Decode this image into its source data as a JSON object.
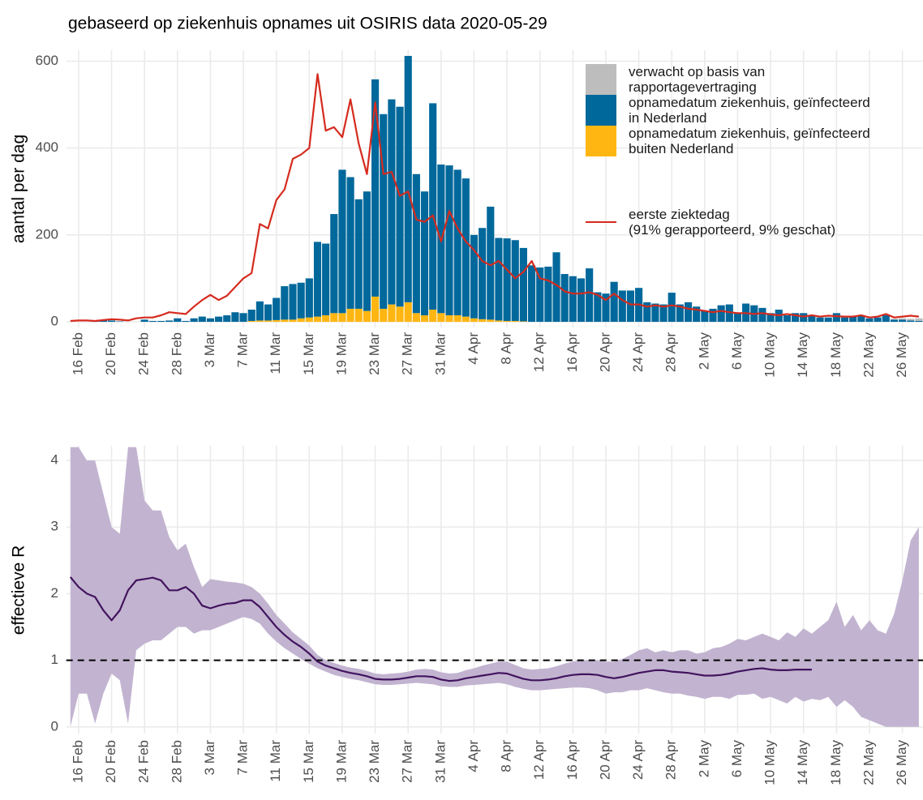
{
  "chart_data": [
    {
      "type": "bar",
      "title": "gebaseerd op ziekenhuis opnames uit OSIRIS data 2020-05-29",
      "y_label": "aantal per dag",
      "categories": [
        null,
        "16 Feb",
        null,
        null,
        null,
        "20 Feb",
        null,
        null,
        null,
        "24 Feb",
        null,
        null,
        null,
        "28 Feb",
        null,
        null,
        null,
        "3 Mar",
        null,
        null,
        null,
        "7 Mar",
        null,
        null,
        null,
        "11 Mar",
        null,
        null,
        null,
        "15 Mar",
        null,
        null,
        null,
        "19 Mar",
        null,
        null,
        null,
        "23 Mar",
        null,
        null,
        null,
        "27 Mar",
        null,
        null,
        null,
        "31 Mar",
        null,
        null,
        null,
        "4 Apr",
        null,
        null,
        null,
        "8 Apr",
        null,
        null,
        null,
        "12 Apr",
        null,
        null,
        null,
        "16 Apr",
        null,
        null,
        null,
        "20 Apr",
        null,
        null,
        null,
        "24 Apr",
        null,
        null,
        null,
        "28 Apr",
        null,
        null,
        null,
        "2 May",
        null,
        null,
        null,
        "6 May",
        null,
        null,
        null,
        "10 May",
        null,
        null,
        null,
        "14 May",
        null,
        null,
        null,
        "18 May",
        null,
        null,
        null,
        "22 May",
        null,
        null,
        null,
        "26 May",
        null,
        null
      ],
      "ylim": [
        -13,
        625
      ],
      "yticks": [
        0,
        200,
        400,
        600
      ],
      "grid": true,
      "legend": "top-right",
      "series": [
        {
          "name": "verwacht op basis van\nrapportagevertraging",
          "type": "bar",
          "color": "#bdbdbd",
          "values": [
            0,
            0,
            0,
            0,
            0,
            0,
            0,
            0,
            0,
            0,
            0,
            0,
            0,
            0,
            0,
            0,
            0,
            0,
            0,
            0,
            0,
            0,
            0,
            0,
            0,
            0,
            0,
            0,
            0,
            0,
            0,
            0,
            0,
            0,
            0,
            0,
            0,
            0,
            0,
            0,
            0,
            0,
            0,
            0,
            0,
            0,
            0,
            0,
            0,
            0,
            0,
            0,
            0,
            0,
            0,
            0,
            0,
            0,
            0,
            0,
            0,
            0,
            0,
            0,
            0,
            0,
            0,
            0,
            0,
            0,
            0,
            0,
            0,
            0,
            0,
            0,
            0,
            0,
            0,
            0,
            0,
            0,
            0,
            0,
            0,
            0,
            0,
            0,
            0,
            0,
            0,
            0,
            0,
            0,
            0,
            0,
            0,
            0,
            1,
            1,
            2,
            3,
            4,
            6
          ]
        },
        {
          "name": "opnamedatum ziekenhuis, geïnfecteerd\nin Nederland",
          "type": "bar",
          "color": "#01689b",
          "values": [
            0,
            0,
            0,
            2,
            3,
            3,
            1,
            0,
            0,
            5,
            2,
            2,
            3,
            8,
            2,
            8,
            12,
            8,
            12,
            15,
            22,
            20,
            26,
            44,
            37,
            51,
            77,
            82,
            82,
            90,
            172,
            165,
            228,
            330,
            303,
            252,
            275,
            500,
            448,
            472,
            460,
            567,
            320,
            285,
            475,
            342,
            345,
            335,
            318,
            192,
            210,
            260,
            190,
            190,
            186,
            169,
            130,
            125,
            127,
            160,
            110,
            105,
            100,
            123,
            68,
            65,
            92,
            72,
            72,
            78,
            45,
            42,
            40,
            67,
            40,
            45,
            35,
            25,
            30,
            38,
            40,
            20,
            42,
            38,
            32,
            20,
            28,
            15,
            20,
            20,
            15,
            10,
            10,
            20,
            10,
            12,
            15,
            8,
            10,
            15,
            5,
            5,
            3,
            2
          ]
        },
        {
          "name": "opnamedatum ziekenhuis, geïnfecteerd\nbuiten Nederland",
          "type": "bar",
          "color": "#ffb612",
          "values": [
            0,
            0,
            0,
            0,
            0,
            0,
            0,
            0,
            0,
            0,
            0,
            0,
            0,
            0,
            0,
            0,
            0,
            0,
            0,
            0,
            0,
            0,
            2,
            3,
            3,
            4,
            5,
            5,
            8,
            10,
            12,
            15,
            20,
            20,
            30,
            30,
            25,
            58,
            30,
            40,
            35,
            45,
            20,
            15,
            28,
            20,
            15,
            15,
            12,
            8,
            6,
            5,
            3,
            2,
            2,
            1,
            0,
            0,
            0,
            0,
            0,
            0,
            0,
            0,
            0,
            0,
            0,
            0,
            0,
            0,
            0,
            0,
            0,
            0,
            0,
            0,
            0,
            0,
            0,
            0,
            0,
            0,
            0,
            0,
            0,
            0,
            0,
            0,
            0,
            0,
            0,
            0,
            0,
            0,
            0,
            0,
            0,
            0,
            0,
            0,
            0,
            0,
            0,
            0
          ]
        },
        {
          "name": "eerste ziektedag\n (91% gerapporteerd, 9% geschat)",
          "type": "line",
          "color": "#d52b1e",
          "values": [
            2,
            3,
            3,
            2,
            4,
            6,
            5,
            3,
            8,
            10,
            10,
            15,
            22,
            20,
            18,
            35,
            50,
            62,
            50,
            60,
            80,
            100,
            112,
            225,
            215,
            280,
            305,
            375,
            385,
            400,
            570,
            440,
            448,
            425,
            512,
            410,
            340,
            505,
            340,
            345,
            290,
            300,
            235,
            230,
            245,
            185,
            255,
            215,
            185,
            165,
            140,
            130,
            140,
            120,
            100,
            115,
            140,
            100,
            95,
            85,
            70,
            65,
            65,
            68,
            62,
            50,
            65,
            50,
            40,
            40,
            35,
            38,
            35,
            38,
            35,
            30,
            28,
            25,
            22,
            25,
            22,
            20,
            20,
            18,
            20,
            17,
            15,
            18,
            15,
            12,
            15,
            12,
            14,
            13,
            12,
            12,
            15,
            10,
            12,
            18,
            10,
            12,
            14,
            12
          ]
        }
      ]
    },
    {
      "type": "line",
      "y_label": "effectieve R",
      "categories": [
        null,
        "16 Feb",
        null,
        null,
        null,
        "20 Feb",
        null,
        null,
        null,
        "24 Feb",
        null,
        null,
        null,
        "28 Feb",
        null,
        null,
        null,
        "3 Mar",
        null,
        null,
        null,
        "7 Mar",
        null,
        null,
        null,
        "11 Mar",
        null,
        null,
        null,
        "15 Mar",
        null,
        null,
        null,
        "19 Mar",
        null,
        null,
        null,
        "23 Mar",
        null,
        null,
        null,
        "27 Mar",
        null,
        null,
        null,
        "31 Mar",
        null,
        null,
        null,
        "4 Apr",
        null,
        null,
        null,
        "8 Apr",
        null,
        null,
        null,
        "12 Apr",
        null,
        null,
        null,
        "16 Apr",
        null,
        null,
        null,
        "20 Apr",
        null,
        null,
        null,
        "24 Apr",
        null,
        null,
        null,
        "28 Apr",
        null,
        null,
        null,
        "2 May",
        null,
        null,
        null,
        "6 May",
        null,
        null,
        null,
        "10 May",
        null,
        null,
        null,
        "14 May",
        null,
        null,
        null,
        "18 May",
        null,
        null,
        null,
        "22 May",
        null,
        null,
        null,
        "26 May",
        null,
        null
      ],
      "ylim": [
        -0.1,
        4.22
      ],
      "yticks": [
        0,
        1,
        2,
        3,
        4
      ],
      "grid": true,
      "hline": 1,
      "band": {
        "color": "#c2b4d0",
        "lower": [
          0,
          0.5,
          0.5,
          0.05,
          0.5,
          0.8,
          0.7,
          0.05,
          1.15,
          1.25,
          1.3,
          1.3,
          1.4,
          1.5,
          1.5,
          1.4,
          1.45,
          1.45,
          1.5,
          1.55,
          1.6,
          1.65,
          1.62,
          1.55,
          1.4,
          1.28,
          1.18,
          1.1,
          1.02,
          0.95,
          0.88,
          0.83,
          0.78,
          0.75,
          0.72,
          0.7,
          0.67,
          0.64,
          0.63,
          0.63,
          0.64,
          0.65,
          0.66,
          0.65,
          0.64,
          0.61,
          0.6,
          0.6,
          0.62,
          0.63,
          0.64,
          0.65,
          0.66,
          0.64,
          0.6,
          0.57,
          0.55,
          0.55,
          0.56,
          0.57,
          0.58,
          0.59,
          0.59,
          0.58,
          0.55,
          0.5,
          0.52,
          0.52,
          0.55,
          0.55,
          0.58,
          0.55,
          0.52,
          0.5,
          0.5,
          0.47,
          0.45,
          0.42,
          0.45,
          0.45,
          0.42,
          0.48,
          0.48,
          0.5,
          0.42,
          0.45,
          0.4,
          0.35,
          0.45,
          0.38,
          0.42,
          0.4,
          0.45,
          0.3,
          0.4,
          0.3,
          0.15,
          0.1,
          0.05,
          0,
          0,
          0,
          0,
          0
        ],
        "upper": [
          4.2,
          4.2,
          4.0,
          4.0,
          3.5,
          3.0,
          2.9,
          4.2,
          4.2,
          3.4,
          3.25,
          3.25,
          2.85,
          2.65,
          2.75,
          2.4,
          2.1,
          2.22,
          2.2,
          2.18,
          2.17,
          2.15,
          2.1,
          2.0,
          1.85,
          1.68,
          1.55,
          1.42,
          1.32,
          1.22,
          1.08,
          1.0,
          0.96,
          0.92,
          0.89,
          0.87,
          0.84,
          0.8,
          0.79,
          0.8,
          0.81,
          0.83,
          0.86,
          0.87,
          0.86,
          0.82,
          0.8,
          0.81,
          0.85,
          0.88,
          0.92,
          0.95,
          0.98,
          0.98,
          0.93,
          0.88,
          0.86,
          0.87,
          0.88,
          0.91,
          0.95,
          0.98,
          1.0,
          1.0,
          1.0,
          0.98,
          0.98,
          1.02,
          1.08,
          1.15,
          1.18,
          1.12,
          1.15,
          1.12,
          1.15,
          1.15,
          1.1,
          1.12,
          1.18,
          1.2,
          1.25,
          1.32,
          1.3,
          1.35,
          1.4,
          1.35,
          1.3,
          1.42,
          1.35,
          1.48,
          1.4,
          1.5,
          1.6,
          1.88,
          1.5,
          1.68,
          1.45,
          1.6,
          1.45,
          1.4,
          1.7,
          2.2,
          2.8,
          3.0
        ]
      },
      "series": [
        {
          "color": "#42145f",
          "values": [
            2.25,
            2.1,
            2.0,
            1.95,
            1.75,
            1.6,
            1.75,
            2.05,
            2.2,
            2.22,
            2.24,
            2.2,
            2.05,
            2.05,
            2.1,
            2.0,
            1.82,
            1.78,
            1.82,
            1.85,
            1.86,
            1.9,
            1.9,
            1.8,
            1.65,
            1.5,
            1.38,
            1.28,
            1.2,
            1.1,
            0.98,
            0.92,
            0.88,
            0.84,
            0.81,
            0.79,
            0.76,
            0.72,
            0.71,
            0.71,
            0.72,
            0.74,
            0.76,
            0.76,
            0.75,
            0.71,
            0.69,
            0.7,
            0.73,
            0.75,
            0.77,
            0.79,
            0.81,
            0.8,
            0.76,
            0.72,
            0.7,
            0.7,
            0.71,
            0.73,
            0.76,
            0.78,
            0.79,
            0.79,
            0.78,
            0.75,
            0.73,
            0.75,
            0.78,
            0.81,
            0.83,
            0.85,
            0.85,
            0.83,
            0.82,
            0.81,
            0.79,
            0.77,
            0.77,
            0.78,
            0.8,
            0.83,
            0.85,
            0.87,
            0.88,
            0.86,
            0.85,
            0.85,
            0.86,
            0.86,
            0.86,
            null,
            null,
            null,
            null,
            null,
            null,
            null,
            null,
            null,
            null,
            null,
            null,
            null
          ]
        }
      ]
    }
  ]
}
